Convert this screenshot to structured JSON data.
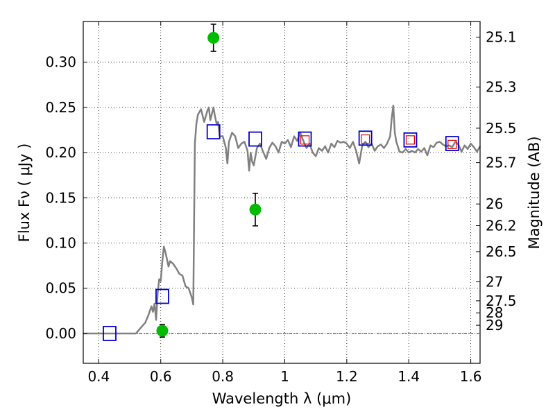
{
  "chart_data": {
    "type": "scatter",
    "title": "",
    "xlabel": "Wavelength  λ (μm)",
    "ylabel": "Flux  Fν  ( μJy )",
    "y2label": "Magnitude (AB)",
    "xlim": [
      0.35,
      1.63
    ],
    "ylim": [
      -0.033,
      0.345
    ],
    "grid": true,
    "legend": "none",
    "xticks": [
      0.4,
      0.6,
      0.8,
      1.0,
      1.2,
      1.4,
      1.6
    ],
    "xtick_labels": [
      "0.4",
      "0.6",
      "0.8",
      "1",
      "1.2",
      "1.4",
      "1.6"
    ],
    "yticks": [
      0.0,
      0.05,
      0.1,
      0.15,
      0.2,
      0.25,
      0.3
    ],
    "ytick_labels": [
      "0.00",
      "0.05",
      "0.10",
      "0.15",
      "0.20",
      "0.25",
      "0.30"
    ],
    "y2ticks": [
      {
        "label": "25.1",
        "flux": 0.3277
      },
      {
        "label": "25.3",
        "flux": 0.2725
      },
      {
        "label": "25.5",
        "flux": 0.227
      },
      {
        "label": "25.7",
        "flux": 0.1889
      },
      {
        "label": "26",
        "flux": 0.1432
      },
      {
        "label": "26.2",
        "flux": 0.1192
      },
      {
        "label": "26.5",
        "flux": 0.0905
      },
      {
        "label": "27",
        "flux": 0.0571
      },
      {
        "label": "27.5",
        "flux": 0.0361
      },
      {
        "label": "28",
        "flux": 0.0228
      },
      {
        "label": "29",
        "flux": 0.0091
      }
    ],
    "series": [
      {
        "kind": "line",
        "color": "#808080",
        "x": [
          0.35,
          0.52,
          0.53,
          0.55,
          0.56,
          0.57,
          0.575,
          0.58,
          0.585,
          0.59,
          0.595,
          0.6,
          0.605,
          0.61,
          0.615,
          0.62,
          0.625,
          0.63,
          0.64,
          0.65,
          0.66,
          0.67,
          0.68,
          0.69,
          0.7,
          0.705,
          0.71,
          0.715,
          0.72,
          0.73,
          0.74,
          0.75,
          0.755,
          0.76,
          0.765,
          0.77,
          0.775,
          0.78,
          0.785,
          0.79,
          0.8,
          0.81,
          0.815,
          0.82,
          0.83,
          0.84,
          0.85,
          0.86,
          0.87,
          0.88,
          0.885,
          0.89,
          0.895,
          0.9,
          0.91,
          0.92,
          0.93,
          0.94,
          0.95,
          0.96,
          0.97,
          0.98,
          0.99,
          1.0,
          1.01,
          1.02,
          1.03,
          1.04,
          1.05,
          1.06,
          1.07,
          1.08,
          1.09,
          1.1,
          1.11,
          1.12,
          1.13,
          1.14,
          1.15,
          1.16,
          1.17,
          1.18,
          1.19,
          1.2,
          1.21,
          1.22,
          1.23,
          1.24,
          1.25,
          1.26,
          1.27,
          1.28,
          1.29,
          1.3,
          1.31,
          1.32,
          1.33,
          1.34,
          1.345,
          1.35,
          1.355,
          1.36,
          1.37,
          1.38,
          1.39,
          1.4,
          1.41,
          1.42,
          1.43,
          1.44,
          1.45,
          1.46,
          1.47,
          1.48,
          1.49,
          1.5,
          1.51,
          1.52,
          1.53,
          1.54,
          1.55,
          1.56,
          1.57,
          1.58,
          1.59,
          1.6,
          1.61,
          1.62,
          1.63
        ],
        "y": [
          0.0,
          0.0,
          0.004,
          0.012,
          0.02,
          0.03,
          0.024,
          0.033,
          0.015,
          0.045,
          0.06,
          0.058,
          0.08,
          0.096,
          0.09,
          0.082,
          0.074,
          0.08,
          0.077,
          0.072,
          0.066,
          0.064,
          0.052,
          0.05,
          0.04,
          0.032,
          0.21,
          0.232,
          0.242,
          0.248,
          0.234,
          0.246,
          0.25,
          0.236,
          0.243,
          0.25,
          0.24,
          0.232,
          0.234,
          0.218,
          0.218,
          0.205,
          0.188,
          0.212,
          0.222,
          0.218,
          0.205,
          0.21,
          0.212,
          0.202,
          0.18,
          0.2,
          0.19,
          0.186,
          0.205,
          0.21,
          0.201,
          0.193,
          0.205,
          0.211,
          0.207,
          0.2,
          0.212,
          0.21,
          0.214,
          0.206,
          0.218,
          0.213,
          0.222,
          0.213,
          0.205,
          0.21,
          0.2,
          0.196,
          0.205,
          0.202,
          0.207,
          0.2,
          0.21,
          0.206,
          0.213,
          0.211,
          0.212,
          0.21,
          0.205,
          0.212,
          0.202,
          0.188,
          0.208,
          0.212,
          0.206,
          0.21,
          0.202,
          0.207,
          0.209,
          0.205,
          0.21,
          0.218,
          0.238,
          0.252,
          0.222,
          0.212,
          0.201,
          0.2,
          0.204,
          0.2,
          0.202,
          0.2,
          0.204,
          0.201,
          0.205,
          0.197,
          0.208,
          0.206,
          0.211,
          0.212,
          0.209,
          0.207,
          0.208,
          0.206,
          0.212,
          0.209,
          0.201,
          0.208,
          0.204,
          0.21,
          0.206,
          0.201,
          0.207
        ]
      },
      {
        "kind": "open-square",
        "color": "#0000cc",
        "x": [
          0.435,
          0.605,
          0.77,
          0.905,
          1.065,
          1.26,
          1.405,
          1.54
        ],
        "y": [
          0.0,
          0.041,
          0.223,
          0.215,
          0.215,
          0.216,
          0.214,
          0.21
        ]
      },
      {
        "kind": "small-open-square",
        "color": "#dd0000",
        "x": [
          1.065,
          1.26,
          1.405,
          1.54
        ],
        "y": [
          0.214,
          0.215,
          0.214,
          0.209
        ]
      },
      {
        "kind": "point-errorbar",
        "color": "#00bb00",
        "x": [
          0.605,
          0.77,
          0.905
        ],
        "y": [
          0.003,
          0.327,
          0.137
        ],
        "yerr": [
          0.007,
          0.015,
          0.018
        ]
      }
    ]
  }
}
